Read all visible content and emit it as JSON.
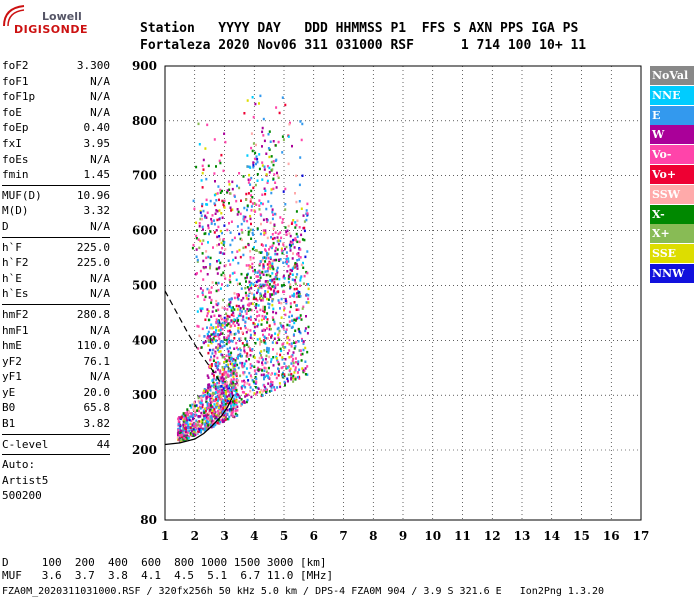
{
  "logo": {
    "line1": "Lowell",
    "line2": "DIGISONDE"
  },
  "header": {
    "row1": "Station   YYYY DAY   DDD HHMMSS P1  FFS S AXN PPS IGA PS",
    "row2": "Fortaleza 2020 Nov06 311 031000 RSF      1 714 100 10+ 11"
  },
  "params": [
    {
      "label": "foF2",
      "value": "3.300"
    },
    {
      "label": "foF1",
      "value": "N/A"
    },
    {
      "label": "foF1p",
      "value": "N/A"
    },
    {
      "label": "foE",
      "value": "N/A"
    },
    {
      "label": "foEp",
      "value": "0.40"
    },
    {
      "label": "fxI",
      "value": "3.95"
    },
    {
      "label": "foEs",
      "value": "N/A"
    },
    {
      "label": "fmin",
      "value": "1.45"
    },
    {
      "sep": true
    },
    {
      "label": "MUF(D)",
      "value": "10.96"
    },
    {
      "label": "M(D)",
      "value": "3.32"
    },
    {
      "label": "D",
      "value": "N/A"
    },
    {
      "sep": true
    },
    {
      "label": "h`F",
      "value": "225.0"
    },
    {
      "label": "h`F2",
      "value": "225.0"
    },
    {
      "label": "h`E",
      "value": "N/A"
    },
    {
      "label": "h`Es",
      "value": "N/A"
    },
    {
      "sep": true
    },
    {
      "label": "hmF2",
      "value": "280.8"
    },
    {
      "label": "hmF1",
      "value": "N/A"
    },
    {
      "label": "hmE",
      "value": "110.0"
    },
    {
      "label": "yF2",
      "value": "76.1"
    },
    {
      "label": "yF1",
      "value": "N/A"
    },
    {
      "label": "yE",
      "value": "20.0"
    },
    {
      "label": "B0",
      "value": "65.8"
    },
    {
      "label": "B1",
      "value": "3.82"
    },
    {
      "sep": true
    },
    {
      "label": "C-level",
      "value": "44"
    },
    {
      "sep": true
    },
    {
      "label": "Auto:",
      "value": ""
    },
    {
      "label": "Artist5",
      "value": ""
    },
    {
      "label": "500200",
      "value": ""
    }
  ],
  "footer": {
    "row1": "D     100  200  400  600  800 1000 1500 3000 [km]",
    "row2": "MUF   3.6  3.7  3.8  4.1  4.5  5.1  6.7 11.0 [MHz]"
  },
  "caption": "FZA0M_2020311031000.RSF / 320fx256h 50 kHz 5.0 km / DPS-4 FZA0M 904 / 3.9 S 321.6 E   Ion2Png 1.3.20",
  "legend": [
    {
      "label": "NoVal",
      "color": "#888888"
    },
    {
      "label": "NNE",
      "color": "#00ccff"
    },
    {
      "label": "E",
      "color": "#3399ee"
    },
    {
      "label": "W",
      "color": "#aa0099"
    },
    {
      "label": "Vo-",
      "color": "#ff44aa"
    },
    {
      "label": "Vo+",
      "color": "#ee0033"
    },
    {
      "label": "SSW",
      "color": "#ffaaaa"
    },
    {
      "label": "X-",
      "color": "#008800"
    },
    {
      "label": "X+",
      "color": "#88bb55"
    },
    {
      "label": "SSE",
      "color": "#dddd00"
    },
    {
      "label": "NNW",
      "color": "#1111dd"
    }
  ],
  "chart_data": {
    "type": "scatter",
    "xlabel": "",
    "ylabel": "",
    "xlim": [
      1,
      17
    ],
    "ylim": [
      80,
      900
    ],
    "x_ticks": [
      1,
      2,
      3,
      4,
      5,
      6,
      7,
      8,
      9,
      10,
      11,
      12,
      13,
      14,
      15,
      16,
      17
    ],
    "y_ticks": [
      80,
      200,
      300,
      400,
      500,
      600,
      700,
      800,
      900
    ],
    "grid": true,
    "trace_curve": {
      "freq_mhz": [
        1.0,
        1.5,
        2.0,
        2.3,
        2.6,
        2.9,
        3.1,
        3.3
      ],
      "height_km": [
        210,
        213,
        220,
        230,
        245,
        262,
        278,
        300
      ]
    },
    "extraordinary_curve": {
      "freq_mhz": [
        1.0,
        1.4,
        1.8,
        2.2,
        2.6,
        2.9
      ],
      "height_km": [
        490,
        450,
        410,
        375,
        345,
        320
      ]
    }
  }
}
